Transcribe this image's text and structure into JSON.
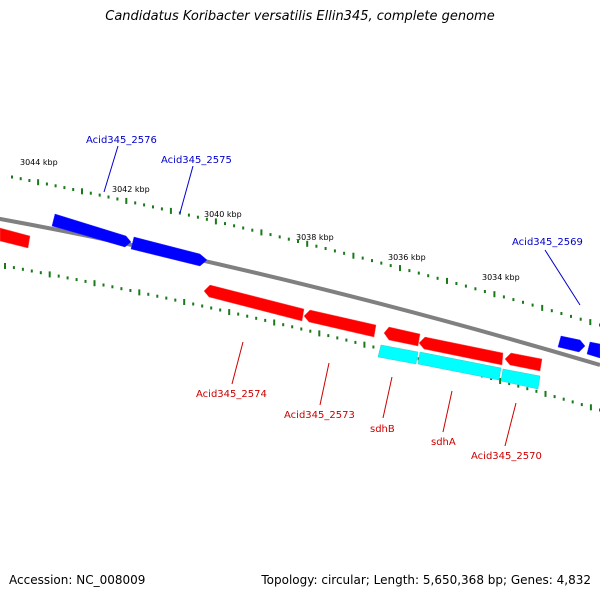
{
  "title": "Candidatus Koribacter versatilis Ellin345, complete genome",
  "footer": {
    "accession": "Accession: NC_008009",
    "summary": "Topology: circular; Length: 5,650,368 bp; Genes: 4,832"
  },
  "colors": {
    "backbone": "#808080",
    "tick": "#1a7a1a",
    "forward_gene": "#0000ff",
    "reverse_gene": "#ff0000",
    "rna_gene": "#00ffff",
    "forward_label": "#0000cc",
    "reverse_label": "#cc0000"
  },
  "kbp_labels": [
    "3044 kbp",
    "3042 kbp",
    "3040 kbp",
    "3038 kbp",
    "3036 kbp",
    "3034 kbp"
  ],
  "genes": [
    {
      "name": "Acid345_2576",
      "strand": "forward"
    },
    {
      "name": "Acid345_2575",
      "strand": "forward"
    },
    {
      "name": "Acid345_2569",
      "strand": "forward"
    },
    {
      "name": "Acid345_2574",
      "strand": "reverse"
    },
    {
      "name": "Acid345_2573",
      "strand": "reverse"
    },
    {
      "name": "sdhB",
      "strand": "reverse"
    },
    {
      "name": "sdhA",
      "strand": "reverse"
    },
    {
      "name": "Acid345_2570",
      "strand": "reverse"
    }
  ]
}
